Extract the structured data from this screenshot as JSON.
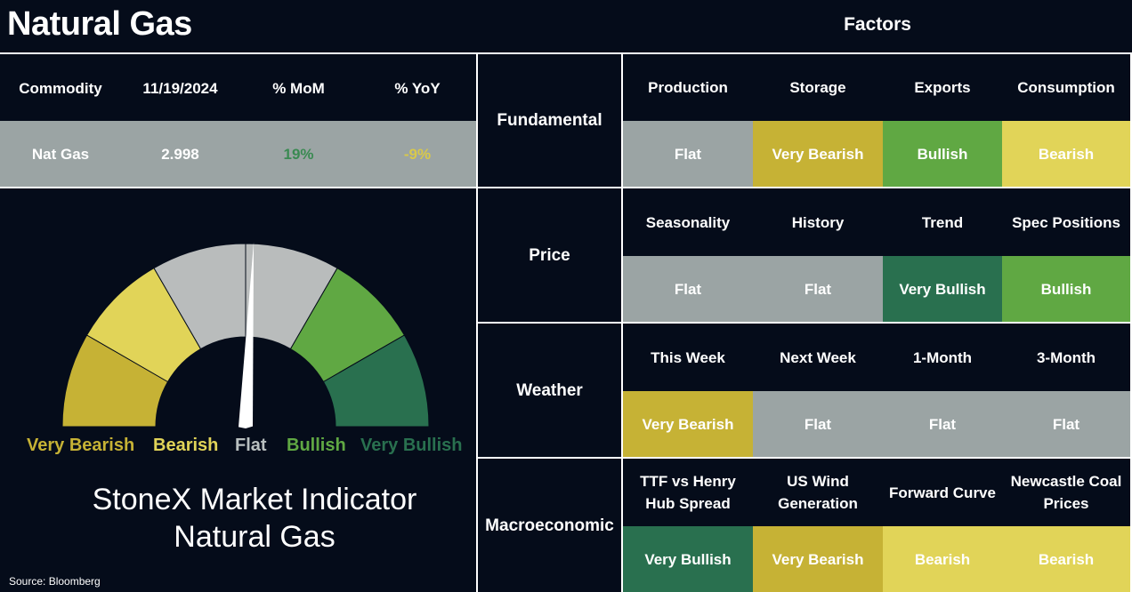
{
  "title": "Natural Gas",
  "factors_title": "Factors",
  "commodity_table": {
    "headers": [
      "Commodity",
      "11/19/2024",
      "% MoM",
      "% YoY"
    ],
    "row": {
      "commodity": "Nat Gas",
      "price": "2.998",
      "mom": "19%",
      "yoy": "-9%"
    },
    "colors": {
      "mom": "#3a8a52",
      "yoy": "#d9c94a"
    }
  },
  "gauge": {
    "labels": [
      "Very Bearish",
      "Bearish",
      "Flat",
      "Bullish",
      "Very Bullish"
    ],
    "label_colors": [
      "#c6b235",
      "#e1d458",
      "#b9c0c0",
      "#60a843",
      "#29704f"
    ],
    "needle_value": "Flat"
  },
  "indicator": {
    "line1": "StoneX Market Indicator",
    "line2": "Natural Gas"
  },
  "source": "Source: Bloomberg",
  "categories": [
    {
      "name": "Fundamental",
      "factors": [
        "Production",
        "Storage",
        "Exports",
        "Consumption"
      ],
      "values": [
        "Flat",
        "Very Bearish",
        "Bullish",
        "Bearish"
      ]
    },
    {
      "name": "Price",
      "factors": [
        "Seasonality",
        "History",
        "Trend",
        "Spec Positions"
      ],
      "values": [
        "Flat",
        "Flat",
        "Very Bullish",
        "Bullish"
      ]
    },
    {
      "name": "Weather",
      "factors": [
        "This Week",
        "Next Week",
        "1-Month",
        "3-Month"
      ],
      "values": [
        "Very Bearish",
        "Flat",
        "Flat",
        "Flat"
      ]
    },
    {
      "name": "Macroeconomic",
      "factors": [
        "TTF vs Henry Hub Spread",
        "US Wind Generation",
        "Forward Curve",
        "Newcastle Coal Prices"
      ],
      "values": [
        "Very Bullish",
        "Very Bearish",
        "Bearish",
        "Bearish"
      ]
    }
  ],
  "rating_colors": {
    "Flat": "#9ba4a4",
    "Very Bearish": "#c6b235",
    "Bearish": "#e1d458",
    "Bullish": "#60a843",
    "Very Bullish": "#29704f"
  }
}
